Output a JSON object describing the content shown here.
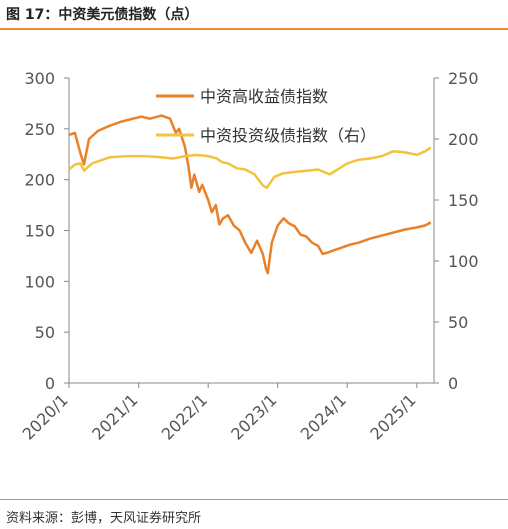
{
  "header": {
    "title": "图 17：中资美元债指数（点）"
  },
  "footer": {
    "source": "资料来源：彭博，天风证券研究所"
  },
  "colors": {
    "accent": "#f08c2b",
    "series_hy": "#e8822a",
    "series_ig": "#f5c23e"
  },
  "chart_data": {
    "type": "line",
    "title": "",
    "xlabel": "",
    "ylabel": "",
    "x_ticks": [
      "2020/1",
      "2021/1",
      "2022/1",
      "2023/1",
      "2024/1",
      "2025/1"
    ],
    "y_left": {
      "lim": [
        0,
        300
      ],
      "ticks": [
        0,
        50,
        100,
        150,
        200,
        250,
        300
      ]
    },
    "y_right": {
      "lim": [
        0,
        250
      ],
      "ticks": [
        0,
        50,
        100,
        150,
        200,
        250
      ]
    },
    "legend_position": "top-center",
    "grid": false,
    "series": [
      {
        "name": "中资高收益债指数",
        "axis": "left",
        "color": "#e8822a",
        "points": [
          [
            "2020-01-01",
            244
          ],
          [
            "2020-02-01",
            246
          ],
          [
            "2020-03-01",
            226
          ],
          [
            "2020-03-20",
            215
          ],
          [
            "2020-04-15",
            240
          ],
          [
            "2020-06-01",
            248
          ],
          [
            "2020-08-01",
            253
          ],
          [
            "2020-10-01",
            257
          ],
          [
            "2020-12-01",
            260
          ],
          [
            "2021-01-15",
            262
          ],
          [
            "2021-03-01",
            260
          ],
          [
            "2021-05-01",
            263
          ],
          [
            "2021-06-15",
            260
          ],
          [
            "2021-07-15",
            246
          ],
          [
            "2021-08-01",
            250
          ],
          [
            "2021-09-01",
            232
          ],
          [
            "2021-09-20",
            212
          ],
          [
            "2021-10-05",
            192
          ],
          [
            "2021-10-20",
            205
          ],
          [
            "2021-11-15",
            188
          ],
          [
            "2021-12-01",
            195
          ],
          [
            "2022-01-01",
            180
          ],
          [
            "2022-01-20",
            168
          ],
          [
            "2022-02-10",
            175
          ],
          [
            "2022-03-01",
            156
          ],
          [
            "2022-03-20",
            162
          ],
          [
            "2022-04-15",
            165
          ],
          [
            "2022-05-15",
            155
          ],
          [
            "2022-06-15",
            150
          ],
          [
            "2022-07-15",
            138
          ],
          [
            "2022-08-15",
            128
          ],
          [
            "2022-09-15",
            140
          ],
          [
            "2022-10-15",
            127
          ],
          [
            "2022-11-01",
            112
          ],
          [
            "2022-11-10",
            108
          ],
          [
            "2022-12-01",
            138
          ],
          [
            "2023-01-01",
            155
          ],
          [
            "2023-02-01",
            162
          ],
          [
            "2023-03-01",
            157
          ],
          [
            "2023-04-01",
            154
          ],
          [
            "2023-05-01",
            146
          ],
          [
            "2023-06-01",
            144
          ],
          [
            "2023-07-01",
            138
          ],
          [
            "2023-08-01",
            135
          ],
          [
            "2023-08-25",
            127
          ],
          [
            "2023-09-15",
            128
          ],
          [
            "2023-10-15",
            130
          ],
          [
            "2023-11-15",
            132
          ],
          [
            "2023-12-15",
            134
          ],
          [
            "2024-01-15",
            136
          ],
          [
            "2024-03-01",
            138
          ],
          [
            "2024-05-01",
            142
          ],
          [
            "2024-07-01",
            145
          ],
          [
            "2024-09-01",
            148
          ],
          [
            "2024-11-01",
            151
          ],
          [
            "2025-01-01",
            153
          ],
          [
            "2025-02-15",
            155
          ],
          [
            "2025-03-15",
            158
          ]
        ]
      },
      {
        "name": "中资投资级债指数（右）",
        "axis": "right",
        "color": "#f5c23e",
        "points": [
          [
            "2020-01-01",
            175
          ],
          [
            "2020-02-01",
            179
          ],
          [
            "2020-03-01",
            180
          ],
          [
            "2020-03-20",
            174
          ],
          [
            "2020-05-01",
            180
          ],
          [
            "2020-08-01",
            185
          ],
          [
            "2020-11-01",
            186
          ],
          [
            "2021-02-01",
            186
          ],
          [
            "2021-05-01",
            185
          ],
          [
            "2021-07-01",
            184
          ],
          [
            "2021-09-01",
            186
          ],
          [
            "2021-11-01",
            187
          ],
          [
            "2022-01-01",
            186
          ],
          [
            "2022-02-15",
            184
          ],
          [
            "2022-03-15",
            181
          ],
          [
            "2022-04-15",
            180
          ],
          [
            "2022-06-01",
            176
          ],
          [
            "2022-07-15",
            175
          ],
          [
            "2022-09-01",
            171
          ],
          [
            "2022-10-15",
            162
          ],
          [
            "2022-11-05",
            160
          ],
          [
            "2022-12-15",
            169
          ],
          [
            "2023-02-01",
            172
          ],
          [
            "2023-04-01",
            173
          ],
          [
            "2023-06-01",
            174
          ],
          [
            "2023-08-01",
            175
          ],
          [
            "2023-10-01",
            171
          ],
          [
            "2023-11-01",
            174
          ],
          [
            "2024-01-01",
            180
          ],
          [
            "2024-03-01",
            183
          ],
          [
            "2024-05-01",
            184
          ],
          [
            "2024-07-01",
            186
          ],
          [
            "2024-09-01",
            190
          ],
          [
            "2024-11-01",
            189
          ],
          [
            "2025-01-01",
            187
          ],
          [
            "2025-02-15",
            190
          ],
          [
            "2025-03-15",
            193
          ]
        ]
      }
    ]
  }
}
